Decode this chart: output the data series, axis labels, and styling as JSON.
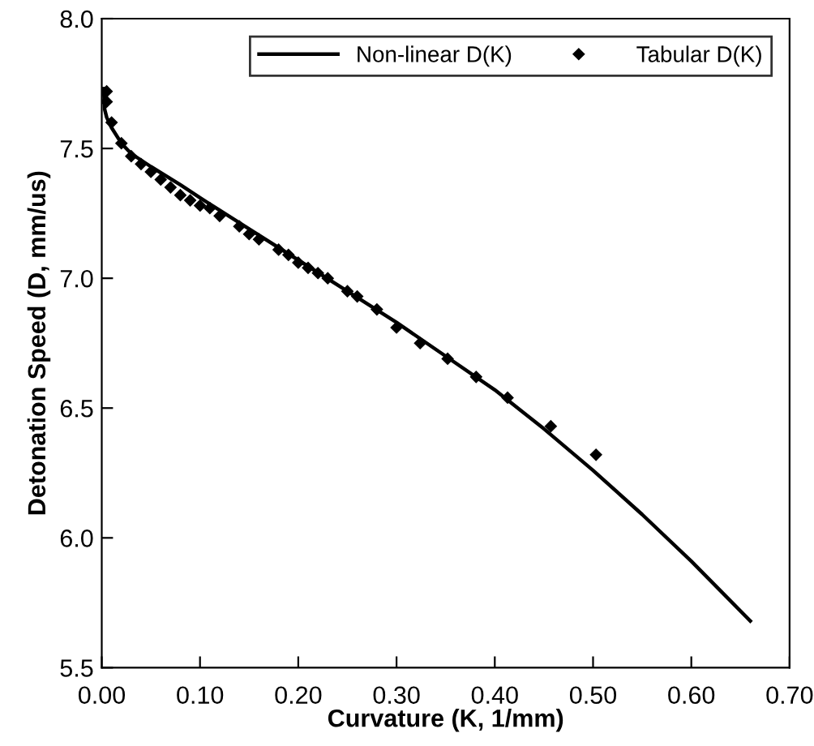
{
  "chart_data": {
    "type": "line",
    "xlabel": "Curvature (K, 1/mm)",
    "ylabel": "Detonation Speed (D, mm/us)",
    "xlim": [
      0,
      0.7
    ],
    "xticks": [
      {
        "value": 0,
        "label": "0.00"
      },
      {
        "value": 0.1,
        "label": "0.10"
      },
      {
        "value": 0.2,
        "label": "0.20"
      },
      {
        "value": 0.3,
        "label": "0.30"
      },
      {
        "value": 0.4,
        "label": "0.40"
      },
      {
        "value": 0.5,
        "label": "0.50"
      },
      {
        "value": 0.6,
        "label": "0.60"
      },
      {
        "value": 0.7,
        "label": "0.70"
      }
    ],
    "ylim": [
      5.5,
      8.0
    ],
    "yticks": [
      {
        "value": 5.5,
        "label": "5.5"
      },
      {
        "value": 6.0,
        "label": "6.0"
      },
      {
        "value": 6.5,
        "label": "6.5"
      },
      {
        "value": 7.0,
        "label": "7.0"
      },
      {
        "value": 7.5,
        "label": "7.5"
      },
      {
        "value": 8.0,
        "label": "8.0"
      }
    ],
    "grid": false,
    "legend": "top right",
    "series": [
      {
        "name": "Non-linear D(K)",
        "color": "#000000",
        "marker": "none",
        "line_style": "solid",
        "x": [
          0.002,
          0.003,
          0.005,
          0.01,
          0.02,
          0.03,
          0.05,
          0.08,
          0.1,
          0.15,
          0.2,
          0.25,
          0.3,
          0.35,
          0.4,
          0.45,
          0.5,
          0.55,
          0.6,
          0.66
        ],
        "values": [
          7.73,
          7.65,
          7.62,
          7.58,
          7.52,
          7.48,
          7.43,
          7.36,
          7.31,
          7.19,
          7.07,
          6.95,
          6.83,
          6.7,
          6.57,
          6.42,
          6.26,
          6.09,
          5.91,
          5.68
        ]
      },
      {
        "name": "Tabular D(K)",
        "type": "scatter",
        "color": "#000000",
        "marker": "diamond",
        "x": [
          0.005,
          0.005,
          0.01,
          0.02,
          0.03,
          0.04,
          0.05,
          0.06,
          0.07,
          0.08,
          0.09,
          0.1,
          0.11,
          0.12,
          0.14,
          0.15,
          0.16,
          0.18,
          0.19,
          0.2,
          0.21,
          0.22,
          0.23,
          0.25,
          0.26,
          0.28,
          0.3,
          0.324,
          0.352,
          0.381,
          0.413,
          0.457,
          0.503
        ],
        "values": [
          7.72,
          7.68,
          7.6,
          7.52,
          7.47,
          7.44,
          7.41,
          7.38,
          7.35,
          7.32,
          7.3,
          7.28,
          7.27,
          7.24,
          7.2,
          7.17,
          7.15,
          7.11,
          7.09,
          7.06,
          7.04,
          7.02,
          7.0,
          6.95,
          6.93,
          6.88,
          6.81,
          6.75,
          6.69,
          6.62,
          6.54,
          6.43,
          6.32
        ]
      }
    ]
  }
}
